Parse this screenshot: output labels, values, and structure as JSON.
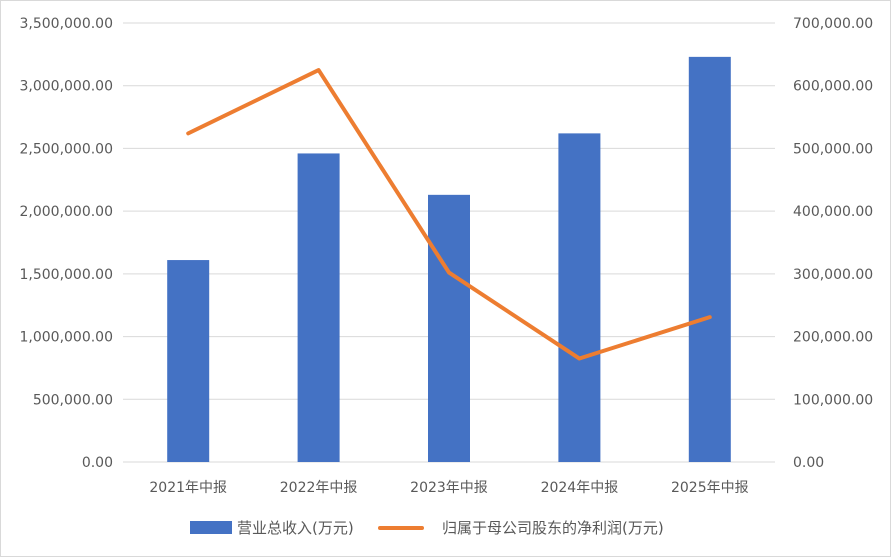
{
  "chart_data": {
    "type": "bar",
    "categories": [
      "2021年中报",
      "2022年中报",
      "2023年中报",
      "2024年中报",
      "2025年中报"
    ],
    "series": [
      {
        "name": "营业总收入(万元)",
        "type": "bar",
        "axis": "left",
        "color": "#4472C4",
        "values": [
          1610000,
          2460000,
          2130000,
          2620000,
          3230000
        ]
      },
      {
        "name": "归属于母公司股东的净利润(万元)",
        "type": "line",
        "axis": "right",
        "color": "#ED7D31",
        "values": [
          524000,
          625000,
          302000,
          165000,
          231000
        ]
      }
    ],
    "left_axis": {
      "ylim": [
        0,
        3500000
      ],
      "ticks": [
        "0.00",
        "500,000.00",
        "1,000,000.00",
        "1,500,000.00",
        "2,000,000.00",
        "2,500,000.00",
        "3,000,000.00",
        "3,500,000.00"
      ]
    },
    "right_axis": {
      "ylim": [
        0,
        700000
      ],
      "ticks": [
        "0.00",
        "100,000.00",
        "200,000.00",
        "300,000.00",
        "400,000.00",
        "500,000.00",
        "600,000.00",
        "700,000.00"
      ]
    },
    "grid": true,
    "legend_position": "bottom"
  }
}
